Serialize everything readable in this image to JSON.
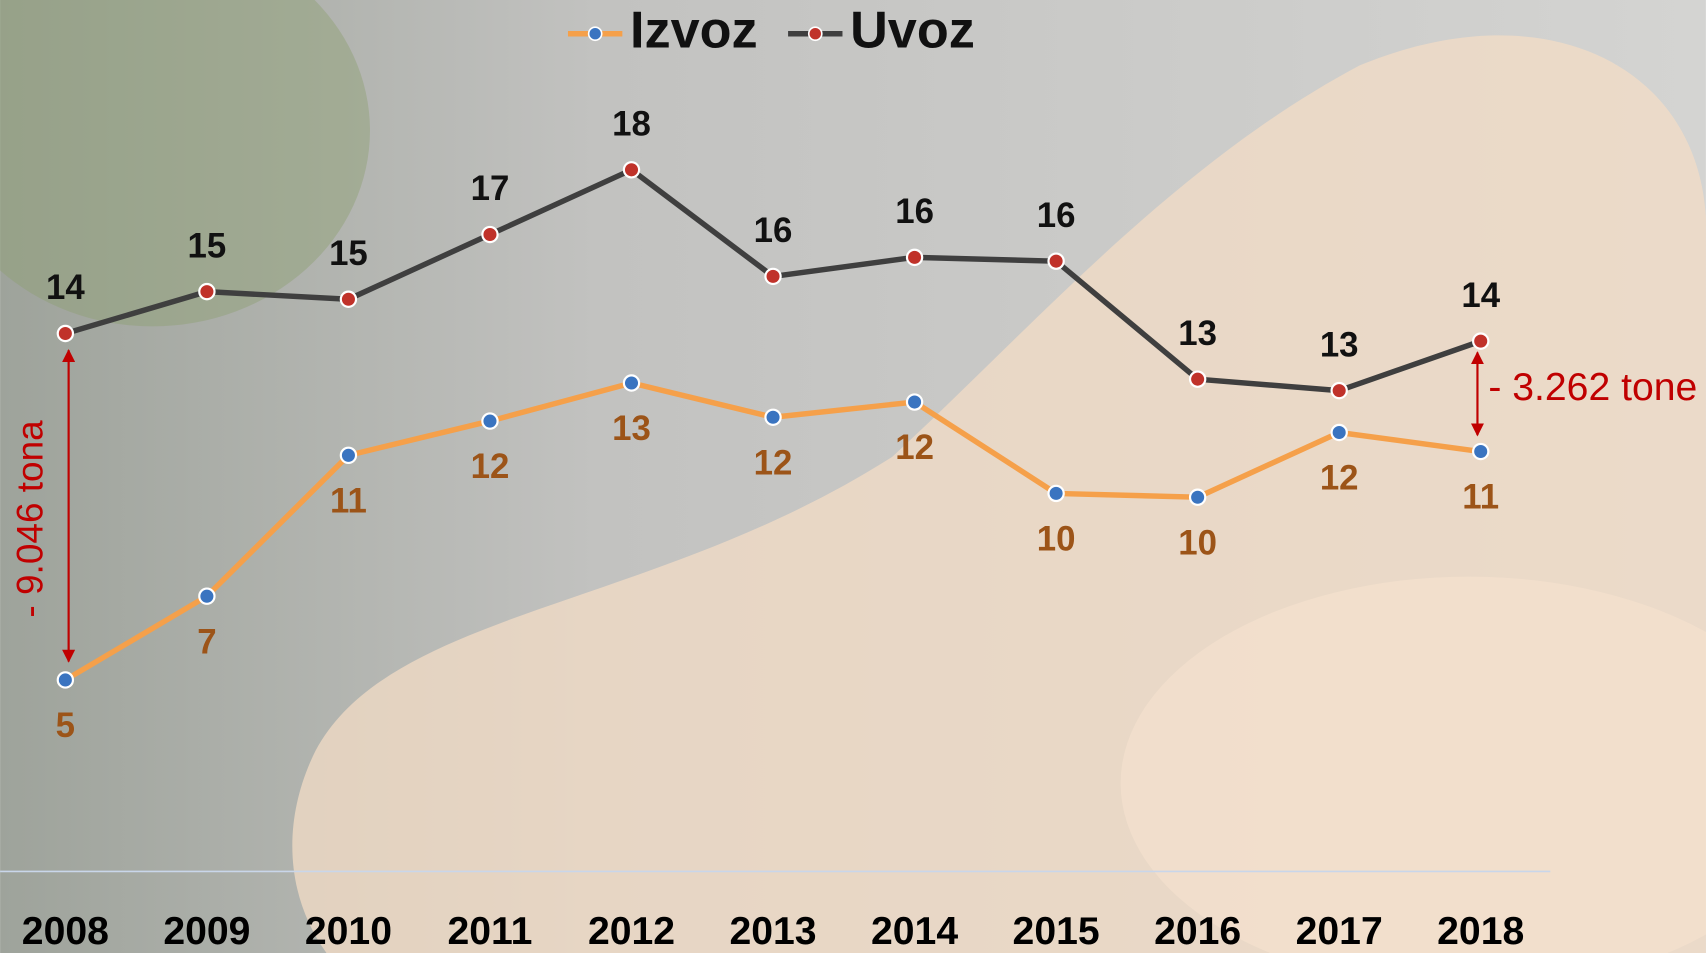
{
  "chart_data": {
    "type": "line",
    "categories": [
      "2008",
      "2009",
      "2010",
      "2011",
      "2012",
      "2013",
      "2014",
      "2015",
      "2016",
      "2017",
      "2018"
    ],
    "series": [
      {
        "name": "Izvoz",
        "color": "#f5a04a",
        "marker_color": "#3a74c0",
        "label_color": "#9c5418",
        "values": [
          5.0,
          7.2,
          10.9,
          11.8,
          12.8,
          11.9,
          12.3,
          9.9,
          9.8,
          11.5,
          11.0
        ],
        "value_labels": [
          "5",
          "7",
          "11",
          "12",
          "13",
          "12",
          "12",
          "10",
          "10",
          "12",
          "11"
        ]
      },
      {
        "name": "Uvoz",
        "color": "#3f3f3f",
        "marker_color": "#c0322a",
        "label_color": "#111111",
        "values": [
          14.1,
          15.2,
          15.0,
          16.7,
          18.4,
          15.6,
          16.1,
          16.0,
          12.9,
          12.6,
          13.9
        ],
        "value_labels": [
          "14",
          "15",
          "15",
          "17",
          "18",
          "16",
          "16",
          "16",
          "13",
          "13",
          "14"
        ]
      }
    ],
    "ylim": [
      0,
      22.86
    ],
    "annotations": [
      "- 9.046 tona",
      "- 3.262 tone"
    ]
  }
}
